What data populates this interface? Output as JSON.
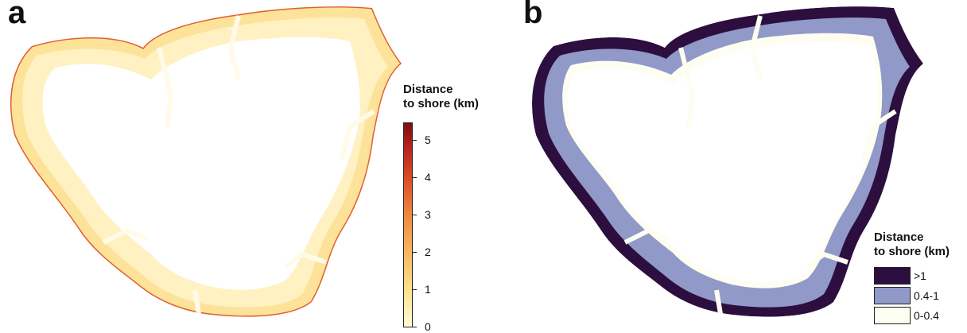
{
  "panels": {
    "a": {
      "letter": "a"
    },
    "b": {
      "letter": "b"
    }
  },
  "legend_a": {
    "title_line1": "Distance",
    "title_line2": "to shore (km)",
    "ticks": [
      {
        "value": 0,
        "label": "0"
      },
      {
        "value": 1,
        "label": "1"
      },
      {
        "value": 2,
        "label": "2"
      },
      {
        "value": 3,
        "label": "3"
      },
      {
        "value": 4,
        "label": "4"
      },
      {
        "value": 5,
        "label": "5"
      }
    ],
    "max": 5.45,
    "colors": [
      "#fffbd6",
      "#fde28a",
      "#f8b860",
      "#ef8a3f",
      "#dc5026",
      "#b7231e",
      "#7d0e12"
    ]
  },
  "legend_b": {
    "title_line1": "Distance",
    "title_line2": "to shore (km)",
    "classes": [
      {
        "label": ">1",
        "color": "#2c0f3f"
      },
      {
        "label": "0.4-1",
        "color": "#9099c8"
      },
      {
        "label": "0-0.4",
        "color": "#fdfdf1"
      }
    ]
  },
  "map_colors": {
    "a_land": "#fde29a",
    "a_land_light": "#fff1c2",
    "a_edge": "#e0602f",
    "a_inner": "#fffbe8",
    "b_outer": "#2c0f3f",
    "b_mid": "#9099c8",
    "b_inner": "#fdfdf1"
  }
}
